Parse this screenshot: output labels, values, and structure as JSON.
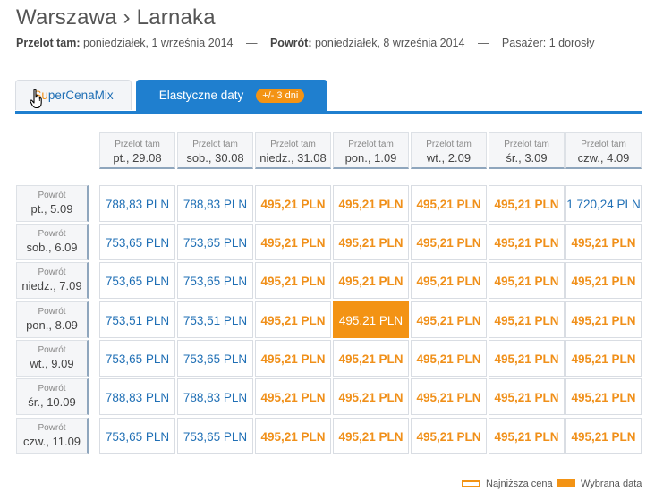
{
  "header": {
    "title": "Warszawa › Larnaka",
    "out_label": "Przelot tam:",
    "out_date": "poniedziałek, 1 września 2014",
    "sep": "—",
    "ret_label": "Powrót:",
    "ret_date": "poniedziałek, 8 września 2014",
    "pax": "Pasażer: 1 dorosły"
  },
  "tabs": {
    "super_prefix": "Su",
    "super_rest": "perCenaMix",
    "elastic": "Elastyczne daty",
    "badge": "+/- 3 dni"
  },
  "grid": {
    "col_label": "Przelot tam",
    "row_label": "Powrót",
    "columns": [
      "pt., 29.08",
      "sob., 30.08",
      "niedz., 31.08",
      "pon., 1.09",
      "wt., 2.09",
      "śr., 3.09",
      "czw., 4.09"
    ],
    "rows": [
      {
        "date": "pt., 5.09",
        "prices": [
          "788,83 PLN",
          "788,83 PLN",
          "495,21 PLN",
          "495,21 PLN",
          "495,21 PLN",
          "495,21 PLN",
          "1 720,24 PLN"
        ],
        "types": [
          "std",
          "std",
          "low",
          "low",
          "low",
          "low",
          "std"
        ]
      },
      {
        "date": "sob., 6.09",
        "prices": [
          "753,65 PLN",
          "753,65 PLN",
          "495,21 PLN",
          "495,21 PLN",
          "495,21 PLN",
          "495,21 PLN",
          "495,21 PLN"
        ],
        "types": [
          "std",
          "std",
          "low",
          "low",
          "low",
          "low",
          "low"
        ]
      },
      {
        "date": "niedz., 7.09",
        "prices": [
          "753,65 PLN",
          "753,65 PLN",
          "495,21 PLN",
          "495,21 PLN",
          "495,21 PLN",
          "495,21 PLN",
          "495,21 PLN"
        ],
        "types": [
          "std",
          "std",
          "low",
          "low",
          "low",
          "low",
          "low"
        ]
      },
      {
        "date": "pon., 8.09",
        "prices": [
          "753,51 PLN",
          "753,51 PLN",
          "495,21 PLN",
          "495,21 PLN",
          "495,21 PLN",
          "495,21 PLN",
          "495,21 PLN"
        ],
        "types": [
          "std",
          "std",
          "low",
          "sel",
          "low",
          "low",
          "low"
        ]
      },
      {
        "date": "wt., 9.09",
        "prices": [
          "753,65 PLN",
          "753,65 PLN",
          "495,21 PLN",
          "495,21 PLN",
          "495,21 PLN",
          "495,21 PLN",
          "495,21 PLN"
        ],
        "types": [
          "std",
          "std",
          "low",
          "low",
          "low",
          "low",
          "low"
        ]
      },
      {
        "date": "śr., 10.09",
        "prices": [
          "788,83 PLN",
          "788,83 PLN",
          "495,21 PLN",
          "495,21 PLN",
          "495,21 PLN",
          "495,21 PLN",
          "495,21 PLN"
        ],
        "types": [
          "std",
          "std",
          "low",
          "low",
          "low",
          "low",
          "low"
        ]
      },
      {
        "date": "czw., 11.09",
        "prices": [
          "753,65 PLN",
          "753,65 PLN",
          "495,21 PLN",
          "495,21 PLN",
          "495,21 PLN",
          "495,21 PLN",
          "495,21 PLN"
        ],
        "types": [
          "std",
          "std",
          "low",
          "low",
          "low",
          "low",
          "low"
        ]
      }
    ]
  },
  "legend": {
    "lowest": "Najniższa cena",
    "selected": "Wybrana data"
  },
  "colors": {
    "accent_blue": "#1f7fcf",
    "accent_orange": "#f39314",
    "price_blue": "#1f6fb5"
  }
}
